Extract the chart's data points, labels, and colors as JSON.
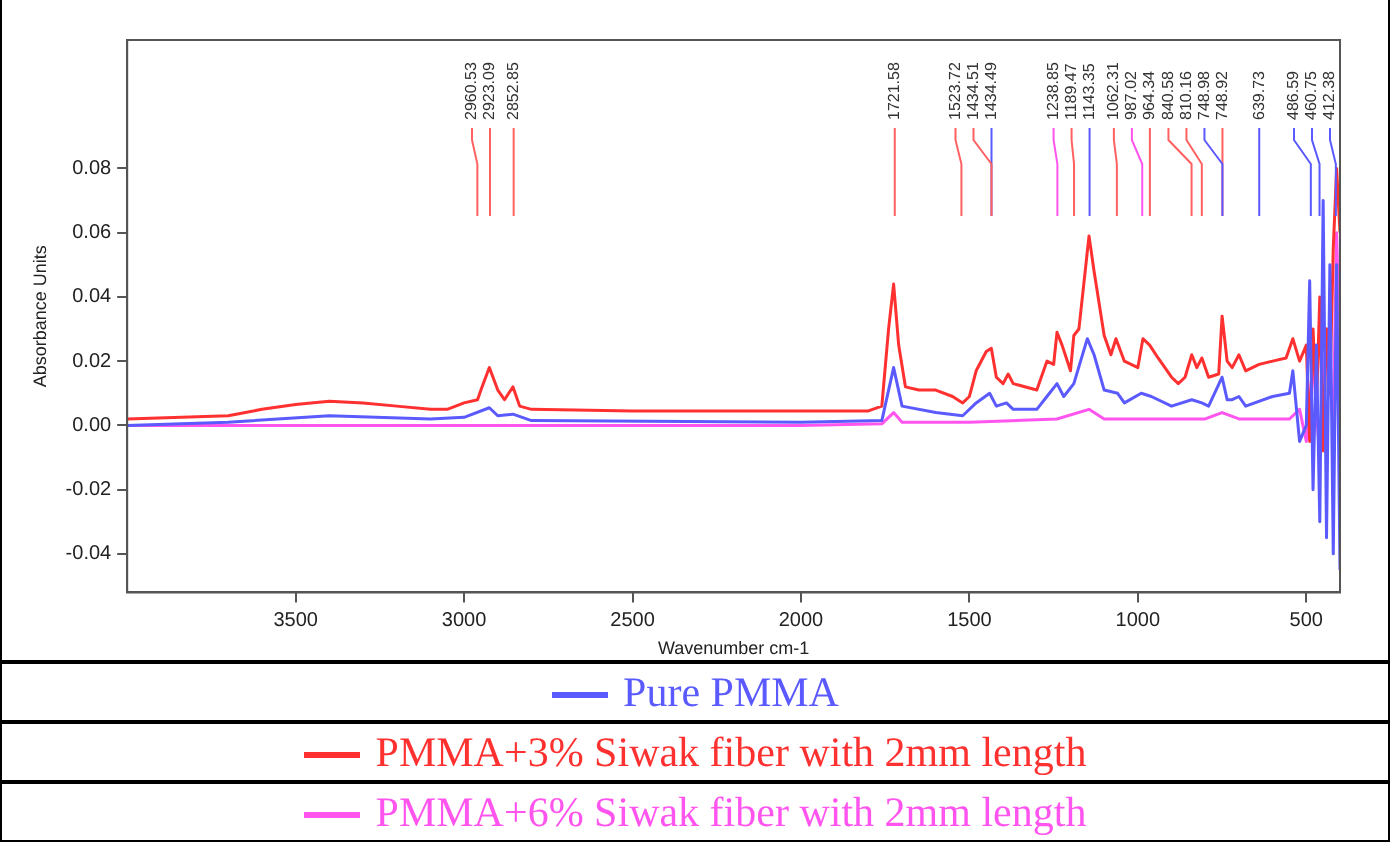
{
  "chart_data": {
    "type": "line",
    "xlabel": "Wavenumber cm-1",
    "ylabel": "Absorbance Units",
    "xlim": [
      4000,
      400
    ],
    "xticks": [
      3500,
      3000,
      2500,
      2000,
      1500,
      1000,
      500
    ],
    "ylim": [
      -0.052,
      0.12
    ],
    "yticks": [
      -0.04,
      -0.02,
      {
        "value": 0,
        "label": "0.00"
      },
      0.02,
      0.04,
      0.06,
      0.08
    ],
    "grid": false,
    "legend": "bottom",
    "marker": "none",
    "line_style": "solid",
    "series": [
      {
        "name": "Pure PMMA",
        "color": "#5a5aff",
        "x": [
          4000,
          3700,
          3400,
          3100,
          3000,
          2925,
          2900,
          2855,
          2800,
          2000,
          1760,
          1725,
          1700,
          1600,
          1520,
          1480,
          1440,
          1420,
          1390,
          1370,
          1300,
          1270,
          1240,
          1220,
          1190,
          1150,
          1130,
          1100,
          1060,
          1040,
          990,
          960,
          900,
          840,
          810,
          790,
          750,
          735,
          720,
          700,
          680,
          600,
          550,
          540,
          520,
          500,
          490,
          480,
          470,
          460,
          450,
          440,
          430,
          420,
          410,
          400
        ],
        "values": [
          0.0,
          0.001,
          0.003,
          0.002,
          0.0025,
          0.0055,
          0.003,
          0.0035,
          0.0015,
          0.001,
          0.0015,
          0.018,
          0.006,
          0.004,
          0.003,
          0.007,
          0.01,
          0.006,
          0.007,
          0.005,
          0.005,
          0.009,
          0.013,
          0.009,
          0.013,
          0.027,
          0.022,
          0.011,
          0.01,
          0.007,
          0.01,
          0.009,
          0.006,
          0.008,
          0.007,
          0.006,
          0.015,
          0.008,
          0.008,
          0.009,
          0.006,
          0.009,
          0.01,
          0.017,
          -0.005,
          0.0,
          0.045,
          -0.02,
          0.025,
          -0.03,
          0.07,
          -0.035,
          0.05,
          -0.04,
          0.05,
          -0.045
        ]
      },
      {
        "name": "PMMA+3% Siwak fiber with 2mm length",
        "color": "#ff3030",
        "x": [
          4000,
          3700,
          3600,
          3500,
          3400,
          3300,
          3200,
          3100,
          3050,
          3000,
          2960,
          2950,
          2925,
          2900,
          2880,
          2855,
          2835,
          2800,
          2500,
          2000,
          1800,
          1760,
          1740,
          1725,
          1710,
          1690,
          1650,
          1600,
          1550,
          1520,
          1500,
          1480,
          1450,
          1435,
          1420,
          1400,
          1385,
          1370,
          1300,
          1270,
          1250,
          1240,
          1225,
          1200,
          1190,
          1175,
          1145,
          1130,
          1100,
          1080,
          1065,
          1040,
          1000,
          985,
          965,
          940,
          900,
          880,
          860,
          840,
          825,
          810,
          790,
          760,
          750,
          735,
          720,
          700,
          680,
          640,
          600,
          560,
          540,
          520,
          500,
          490,
          480,
          470,
          460,
          450,
          440,
          430,
          420,
          410,
          400
        ],
        "values": [
          0.002,
          0.003,
          0.005,
          0.0065,
          0.0075,
          0.007,
          0.006,
          0.005,
          0.005,
          0.007,
          0.008,
          0.011,
          0.018,
          0.011,
          0.008,
          0.012,
          0.006,
          0.005,
          0.0045,
          0.0045,
          0.0045,
          0.006,
          0.03,
          0.044,
          0.025,
          0.012,
          0.011,
          0.011,
          0.009,
          0.007,
          0.009,
          0.017,
          0.023,
          0.024,
          0.015,
          0.013,
          0.016,
          0.013,
          0.011,
          0.02,
          0.019,
          0.029,
          0.025,
          0.017,
          0.028,
          0.03,
          0.059,
          0.048,
          0.028,
          0.022,
          0.027,
          0.02,
          0.018,
          0.027,
          0.025,
          0.021,
          0.015,
          0.013,
          0.015,
          0.022,
          0.018,
          0.021,
          0.015,
          0.016,
          0.034,
          0.02,
          0.018,
          0.022,
          0.017,
          0.019,
          0.02,
          0.021,
          0.027,
          0.02,
          0.025,
          -0.005,
          0.03,
          0.005,
          0.04,
          -0.008,
          0.03,
          0.01,
          0.055,
          0.08,
          0.06
        ]
      },
      {
        "name": "PMMA+6% Siwak fiber with 2mm length",
        "color": "#ff55ee",
        "x": [
          4000,
          2000,
          1760,
          1725,
          1700,
          1500,
          1240,
          1145,
          1100,
          800,
          750,
          700,
          550,
          520,
          500,
          480,
          460,
          440,
          420,
          410,
          400
        ],
        "values": [
          0.0,
          0.0,
          0.0005,
          0.004,
          0.001,
          0.001,
          0.002,
          0.005,
          0.002,
          0.002,
          0.004,
          0.002,
          0.002,
          0.005,
          -0.005,
          0.02,
          -0.01,
          0.03,
          0.0,
          0.06,
          0.02
        ]
      }
    ],
    "ref_lines": [
      {
        "axis": "x",
        "value": 2960.53,
        "label": "2960.53",
        "color": "#ff6060"
      },
      {
        "axis": "x",
        "value": 2923.09,
        "label": "2923.09",
        "color": "#ff6060"
      },
      {
        "axis": "x",
        "value": 2852.85,
        "label": "2852.85",
        "color": "#ff6060"
      },
      {
        "axis": "x",
        "value": 1721.58,
        "label": "1721.58",
        "color": "#ff6060"
      },
      {
        "axis": "x",
        "value": 1523.72,
        "label": "1523.72",
        "color": "#ff6060"
      },
      {
        "axis": "x",
        "value": 1434.51,
        "label": "1434.51",
        "color": "#ff6060"
      },
      {
        "axis": "x",
        "value": 1434.49,
        "label": "1434.49",
        "color": "#5a5aff"
      },
      {
        "axis": "x",
        "value": 1238.85,
        "label": "1238.85",
        "color": "#ff55ee"
      },
      {
        "axis": "x",
        "value": 1189.47,
        "label": "1189.47",
        "color": "#ff6060"
      },
      {
        "axis": "x",
        "value": 1143.35,
        "label": "1143.35",
        "color": "#5a5aff"
      },
      {
        "axis": "x",
        "value": 1062.31,
        "label": "1062.31",
        "color": "#ff6060"
      },
      {
        "axis": "x",
        "value": 987.02,
        "label": "987.02",
        "color": "#ff55ee"
      },
      {
        "axis": "x",
        "value": 964.34,
        "label": "964.34",
        "color": "#ff6060"
      },
      {
        "axis": "x",
        "value": 840.58,
        "label": "840.58",
        "color": "#ff6060"
      },
      {
        "axis": "x",
        "value": 810.16,
        "label": "810.16",
        "color": "#ff6060"
      },
      {
        "axis": "x",
        "value": 748.98,
        "label": "748.98",
        "color": "#5a5aff"
      },
      {
        "axis": "x",
        "value": 748.92,
        "label": "748.92",
        "color": "#ff6060"
      },
      {
        "axis": "x",
        "value": 639.73,
        "label": "639.73",
        "color": "#5a5aff"
      },
      {
        "axis": "x",
        "value": 486.59,
        "label": "486.59",
        "color": "#5a5aff"
      },
      {
        "axis": "x",
        "value": 460.75,
        "label": "460.75",
        "color": "#5a5aff"
      },
      {
        "axis": "x",
        "value": 412.38,
        "label": "412.38",
        "color": "#5a5aff"
      }
    ]
  }
}
